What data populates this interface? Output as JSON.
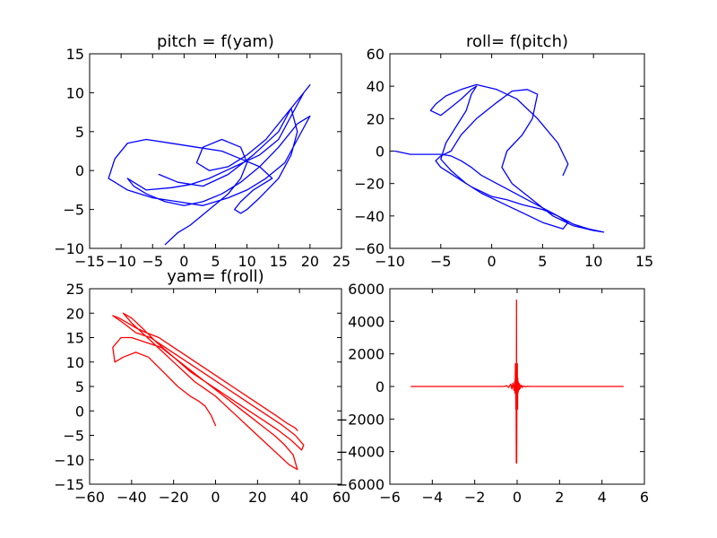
{
  "chart_data": [
    {
      "type": "line",
      "title": "pitch = f(yam)",
      "xlim": [
        -15,
        25
      ],
      "ylim": [
        -10,
        15
      ],
      "xticks": [
        -15,
        -10,
        -5,
        0,
        5,
        10,
        15,
        20,
        25
      ],
      "yticks": [
        -10,
        -5,
        0,
        5,
        10,
        15
      ],
      "xtick_labels": [
        "−15",
        "−10",
        "−5",
        "0",
        "5",
        "10",
        "15",
        "20",
        "25"
      ],
      "ytick_labels": [
        "−10",
        "−5",
        "0",
        "5",
        "10",
        "15"
      ],
      "color": "#0000ff",
      "x": [
        -3,
        -1,
        1,
        4,
        7,
        9,
        10,
        9,
        6,
        3,
        2,
        4,
        7,
        10,
        13,
        16,
        19,
        20,
        19,
        17,
        15,
        12,
        8,
        4,
        1,
        -2,
        -6,
        -9,
        -8,
        -6,
        -3,
        0,
        3,
        6,
        9,
        12,
        15,
        18,
        20,
        18,
        16,
        13,
        10,
        7,
        3,
        -1,
        -5,
        -9,
        -12,
        -11,
        -9,
        -6,
        -2,
        2,
        6,
        9,
        12,
        14,
        11,
        9,
        8,
        9,
        10,
        12,
        15,
        17,
        18,
        17,
        15,
        11,
        7,
        3,
        -1,
        -4
      ],
      "y": [
        -9.5,
        -8,
        -7,
        -5,
        -3,
        -1,
        1,
        3,
        4,
        3,
        1,
        0,
        0.5,
        2,
        4,
        7,
        10,
        11,
        10,
        7,
        4,
        2,
        0.5,
        -1,
        -1.8,
        -2.2,
        -2.5,
        -1,
        -2,
        -3,
        -4,
        -4.5,
        -4,
        -3,
        -1.5,
        0.5,
        3,
        6,
        7,
        4,
        1,
        -1,
        -2.5,
        -3.5,
        -4.5,
        -4,
        -3.5,
        -2.5,
        -1,
        1.5,
        3.5,
        4,
        3.5,
        3,
        2.5,
        1.5,
        0.5,
        -1,
        -2.5,
        -4,
        -5,
        -5.5,
        -5,
        -3.5,
        -1,
        2,
        5,
        8,
        5,
        2,
        -0.5,
        -2,
        -1.5,
        -0.5
      ]
    },
    {
      "type": "line",
      "title": "roll= f(pitch)",
      "xlim": [
        -10,
        15
      ],
      "ylim": [
        -60,
        60
      ],
      "xticks": [
        -10,
        -5,
        0,
        5,
        10,
        15
      ],
      "yticks": [
        -60,
        -40,
        -20,
        0,
        20,
        40,
        60
      ],
      "xtick_labels": [
        "−10",
        "−5",
        "0",
        "5",
        "10",
        "15"
      ],
      "ytick_labels": [
        "−60",
        "−40",
        "−20",
        "0",
        "20",
        "40",
        "60"
      ],
      "color": "#0000ff",
      "x": [
        -9.5,
        -8,
        -6,
        -5,
        -4,
        -3,
        -2,
        -1,
        0.5,
        2,
        3.5,
        5,
        6.5,
        8,
        9.5,
        11,
        10,
        8,
        6,
        4,
        2,
        1,
        1.5,
        3,
        4,
        4.5,
        3.5,
        2,
        0.5,
        -1.5,
        -3,
        -4,
        -5,
        -5.5,
        -5,
        -4,
        -3,
        -2,
        -1,
        0,
        1.5,
        3,
        5,
        6.5,
        7.5,
        7,
        5,
        3,
        1,
        -1,
        -2.5,
        -4,
        -5,
        -4.5,
        -3.5,
        -2.5,
        -2,
        -1.5,
        -2,
        -3,
        -4,
        -5,
        -6,
        -5.5,
        -4.5,
        -3,
        -1.5,
        0.5,
        2.5,
        4.5,
        6.5,
        7.5,
        7
      ],
      "y": [
        0,
        -2,
        -2,
        -2,
        -3,
        -6,
        -10,
        -15,
        -20,
        -25,
        -30,
        -35,
        -40,
        -45,
        -48,
        -50,
        -49,
        -46,
        -40,
        -30,
        -20,
        -10,
        0,
        10,
        20,
        35,
        38,
        37,
        30,
        20,
        10,
        0,
        -3,
        -6,
        -10,
        -14,
        -18,
        -22,
        -25,
        -28,
        -30,
        -33,
        -36,
        -40,
        -44,
        -48,
        -44,
        -38,
        -32,
        -26,
        -20,
        -12,
        -5,
        5,
        15,
        25,
        35,
        40,
        38,
        32,
        27,
        22,
        25,
        29,
        34,
        38,
        41,
        38,
        32,
        20,
        5,
        -8,
        -15
      ]
    },
    {
      "type": "line",
      "title": "yam= f(roll)",
      "xlim": [
        -60,
        60
      ],
      "ylim": [
        -15,
        25
      ],
      "xticks": [
        -60,
        -40,
        -20,
        0,
        20,
        40,
        60
      ],
      "yticks": [
        -15,
        -10,
        -5,
        0,
        5,
        10,
        15,
        20,
        25
      ],
      "xtick_labels": [
        "−60",
        "−40",
        "−20",
        "0",
        "20",
        "40",
        "60"
      ],
      "ytick_labels": [
        "−15",
        "−10",
        "−5",
        "0",
        "5",
        "10",
        "15",
        "20",
        "25"
      ],
      "color": "#ff0000",
      "x": [
        0,
        -2,
        -5,
        -8,
        -12,
        -18,
        -25,
        -32,
        -38,
        -44,
        -48,
        -49,
        -45,
        -40,
        -33,
        -26,
        -20,
        -14,
        -8,
        -2,
        4,
        10,
        16,
        22,
        28,
        33,
        37,
        39,
        35,
        30,
        25,
        20,
        15,
        10,
        5,
        0,
        -5,
        -10,
        -15,
        -20,
        -25,
        -30,
        -35,
        -40,
        -44,
        -40,
        -35,
        -28,
        -20,
        -12,
        -5,
        2,
        9,
        16,
        23,
        30,
        36,
        41,
        42,
        38,
        32,
        25,
        18,
        11,
        4,
        -3,
        -10,
        -17,
        -24,
        -31,
        -38,
        -44,
        -49,
        -46,
        -42,
        -38,
        -33,
        -27,
        -20,
        -13,
        -6,
        1,
        8,
        15,
        22,
        29,
        34,
        38,
        39
      ],
      "y": [
        -3,
        -1,
        1,
        2,
        3,
        5,
        8,
        11,
        12,
        11,
        10,
        13,
        15,
        15,
        14,
        13,
        11,
        9,
        7,
        5,
        3,
        1,
        -1,
        -3,
        -5,
        -7,
        -9,
        -12,
        -11,
        -9,
        -7,
        -5,
        -3,
        -1,
        1,
        3,
        4.5,
        6,
        8,
        10,
        12,
        14,
        16,
        18,
        20,
        19,
        17,
        14,
        11,
        8,
        6,
        4,
        2,
        0,
        -2,
        -4,
        -6,
        -8,
        -7,
        -5,
        -3,
        -1,
        1,
        3,
        5,
        7,
        9,
        11,
        13,
        15,
        16,
        18,
        19.5,
        19,
        18,
        17,
        16,
        15,
        13,
        11,
        9,
        7,
        5,
        3,
        1,
        -1,
        -2.5,
        -3.5,
        -4
      ]
    },
    {
      "type": "line",
      "title": "",
      "xlim": [
        -6,
        6
      ],
      "ylim": [
        -6000,
        6000
      ],
      "xticks": [
        -6,
        -4,
        -2,
        0,
        2,
        4,
        6
      ],
      "yticks": [
        -6000,
        -4000,
        -2000,
        0,
        2000,
        4000,
        6000
      ],
      "xtick_labels": [
        "−6",
        "−4",
        "−2",
        "0",
        "2",
        "4",
        "6"
      ],
      "ytick_labels": [
        "−6000",
        "−4000",
        "−2000",
        "0",
        "2000",
        "4000",
        "6000"
      ],
      "color": "#ff0000",
      "x": [
        -5,
        -0.6,
        -0.5,
        -0.4,
        -0.3,
        -0.25,
        -0.2,
        -0.15,
        -0.12,
        -0.1,
        -0.08,
        -0.06,
        -0.05,
        -0.04,
        -0.03,
        -0.02,
        -0.01,
        0,
        0.01,
        0.02,
        0.03,
        0.04,
        0.05,
        0.06,
        0.08,
        0.1,
        0.12,
        0.15,
        0.2,
        0.25,
        0.3,
        0.4,
        0.5,
        0.6,
        5
      ],
      "y": [
        0,
        0,
        50,
        -60,
        150,
        -150,
        200,
        -250,
        300,
        -400,
        1400,
        -1400,
        600,
        -4700,
        5300,
        -4700,
        600,
        0,
        1400,
        -1400,
        500,
        -400,
        300,
        -300,
        200,
        -200,
        150,
        -120,
        80,
        -60,
        40,
        -20,
        10,
        0,
        0
      ]
    }
  ]
}
